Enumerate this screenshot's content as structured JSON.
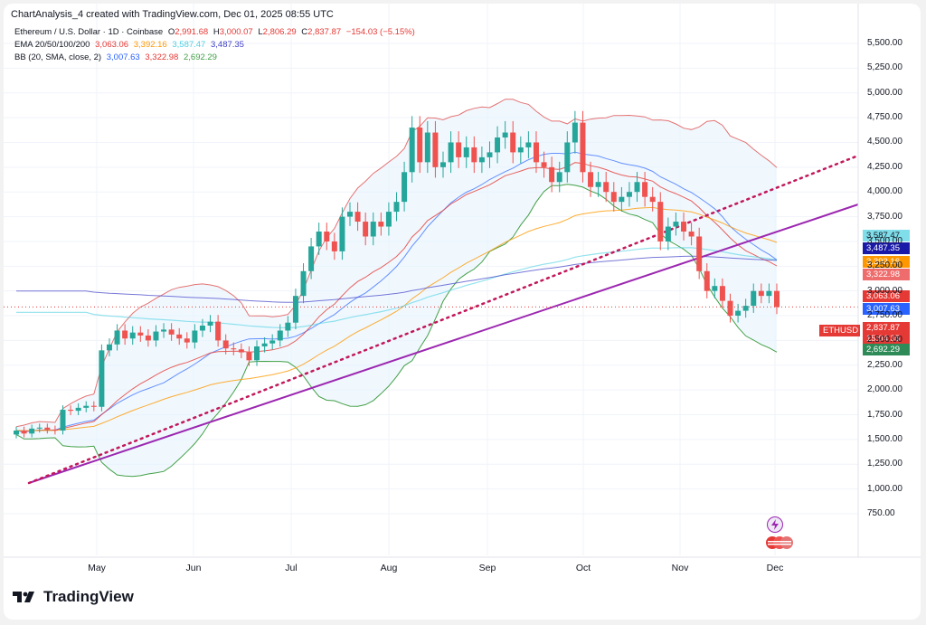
{
  "header": {
    "created": "ChartAnalysis_4 created with TradingView.com, Dec 01, 2025 08:55 UTC"
  },
  "legend": {
    "symbol": "Ethereum / U.S. Dollar · 1D · Coinbase",
    "o_label": "O",
    "o_value": "2,991.68",
    "h_label": "H",
    "h_value": "3,000.07",
    "l_label": "L",
    "l_value": "2,806.29",
    "c_label": "C",
    "c_value": "2,837.87",
    "change": "−154.03 (−5.15%)",
    "ema_label": "EMA 20/50/100/200",
    "ema20": "3,063.06",
    "ema50": "3,392.16",
    "ema100": "3,587.47",
    "ema200": "3,487.35",
    "bb_label": "BB (20, SMA, close, 2)",
    "bb_basis": "3,007.63",
    "bb_upper": "3,322.98",
    "bb_lower": "2,692.29"
  },
  "price_tags": {
    "ema100": "3,587.47",
    "ema200": "3,487.35",
    "ema50": "3,392.16",
    "bb_upper": "3,322.98",
    "ema20": "3,063.06",
    "bb_basis": "3,007.63",
    "symbol": "ETHUSD",
    "last": "2,837.87",
    "countdown": "15:04:35",
    "bb_lower": "2,692.29"
  },
  "brand": {
    "name": "TradingView"
  },
  "colors": {
    "up": "#26a69a",
    "down": "#ef5350",
    "ema20": "#e53935",
    "ema50": "#ff9800",
    "ema100": "#4dd0e1",
    "ema200": "#3f3fc8",
    "bb_basis": "#2962ff",
    "bb_upper": "#e57373",
    "bb_lower": "#43a047",
    "trend_solid": "#9c27b0",
    "trend_dotted": "#c2185b"
  },
  "chart_data": {
    "type": "candlestick",
    "symbol": "ETHUSD",
    "timeframe": "1D",
    "y_ticks": [
      "5,500.00",
      "5,250.00",
      "5,000.00",
      "4,750.00",
      "4,500.00",
      "4,250.00",
      "4,000.00",
      "3,750.00",
      "3,500.00",
      "3,250.00",
      "3,000.00",
      "2,750.00",
      "2,500.00",
      "2,250.00",
      "2,000.00",
      "1,750.00",
      "1,500.00",
      "1,250.00",
      "1,000.00",
      "750.00"
    ],
    "ylim": [
      750,
      5600
    ],
    "x_labels": [
      "May",
      "Jun",
      "Jul",
      "Aug",
      "Sep",
      "Oct",
      "Nov",
      "Dec"
    ],
    "closes": [
      1590,
      1560,
      1610,
      1620,
      1600,
      1590,
      1800,
      1790,
      1820,
      1840,
      1830,
      2400,
      2460,
      2600,
      2520,
      2580,
      2550,
      2500,
      2590,
      2610,
      2560,
      2520,
      2480,
      2600,
      2650,
      2690,
      2500,
      2420,
      2410,
      2380,
      2300,
      2440,
      2470,
      2500,
      2600,
      2680,
      2950,
      3200,
      3450,
      3600,
      3500,
      3400,
      3750,
      3800,
      3700,
      3550,
      3700,
      3650,
      3800,
      3900,
      4200,
      4650,
      4300,
      4600,
      4250,
      4300,
      4500,
      4350,
      4450,
      4300,
      4350,
      4400,
      4550,
      4600,
      4400,
      4450,
      4500,
      4300,
      4250,
      4100,
      4200,
      4500,
      4700,
      4200,
      4050,
      4100,
      4000,
      3900,
      3950,
      4000,
      4100,
      3950,
      3900,
      3500,
      3650,
      3700,
      3600,
      3550,
      3200,
      3000,
      3050,
      2900,
      2750,
      2800,
      2850,
      3000,
      2950,
      3000,
      2837.87
    ],
    "series": [
      {
        "name": "EMA 20",
        "last": 3063.06
      },
      {
        "name": "EMA 50",
        "last": 3392.16
      },
      {
        "name": "EMA 100",
        "last": 3587.47
      },
      {
        "name": "EMA 200",
        "last": 3487.35
      },
      {
        "name": "BB basis",
        "last": 3007.63
      },
      {
        "name": "BB upper",
        "last": 3322.98
      },
      {
        "name": "BB lower",
        "last": 2692.29
      }
    ]
  }
}
